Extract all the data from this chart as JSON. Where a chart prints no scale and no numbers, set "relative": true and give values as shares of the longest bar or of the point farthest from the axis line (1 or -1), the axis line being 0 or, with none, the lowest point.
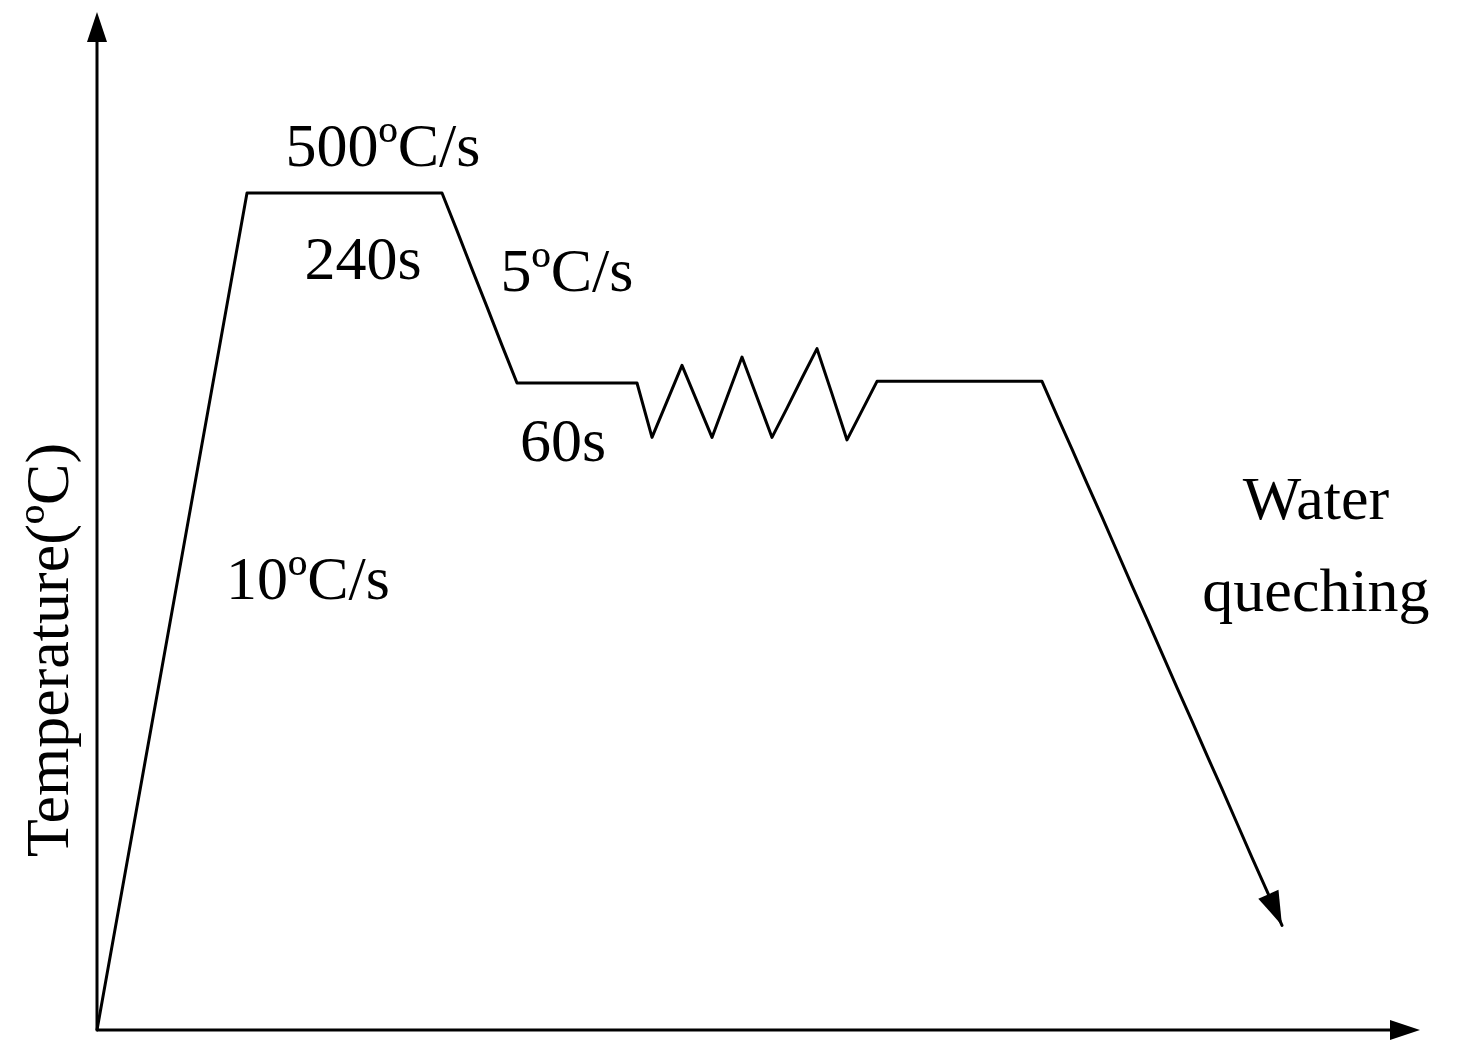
{
  "chart_data": {
    "type": "line",
    "relative": true,
    "ylabel": "Temperature(ºC)",
    "categories": [
      null,
      null,
      null,
      null,
      null,
      null,
      null,
      null,
      null,
      null,
      null,
      null,
      null,
      null,
      null,
      null,
      null,
      null,
      null,
      null,
      null,
      null,
      null,
      null,
      null,
      null,
      null,
      null,
      null,
      null,
      null,
      null,
      null,
      null,
      null,
      null,
      null,
      null,
      null,
      null,
      null,
      null,
      null,
      null,
      null,
      null,
      null,
      null,
      null,
      null,
      null,
      null,
      null,
      null,
      null,
      null,
      null,
      null,
      null,
      null,
      null,
      null,
      null,
      null,
      null,
      null,
      null,
      null,
      null,
      null,
      null,
      null,
      null,
      null,
      null,
      null,
      null,
      null,
      null,
      null
    ],
    "series": [
      {
        "color": "#000000",
        "values": [
          0,
          0.1,
          0.2,
          0.3,
          0.4,
          0.5,
          0.6,
          0.7,
          0.8,
          0.9,
          1,
          1,
          1,
          1,
          1,
          1,
          1,
          1,
          1,
          1,
          1,
          1,
          1,
          1,
          0.955,
          0.909,
          0.864,
          0.818,
          0.773,
          0.773,
          0.773,
          0.773,
          0.773,
          0.773,
          0.773,
          0.773,
          0.773,
          0.708,
          0.751,
          0.794,
          0.751,
          0.708,
          0.756,
          0.804,
          0.756,
          0.708,
          0.743,
          0.779,
          0.814,
          0.76,
          0.705,
          0.74,
          0.775,
          0.775,
          0.775,
          0.775,
          0.775,
          0.775,
          0.775,
          0.775,
          0.775,
          0.775,
          0.775,
          0.775,
          0.734,
          0.694,
          0.653,
          0.613,
          0.572,
          0.531,
          0.491,
          0.45,
          0.409,
          0.369,
          0.328,
          0.288,
          0.247,
          0.206,
          0.166,
          0.125
        ]
      }
    ],
    "annotations": [
      "500ºC/s",
      "240s",
      "5ºC/s",
      "60s",
      "10ºC/s",
      "Water queching"
    ]
  }
}
